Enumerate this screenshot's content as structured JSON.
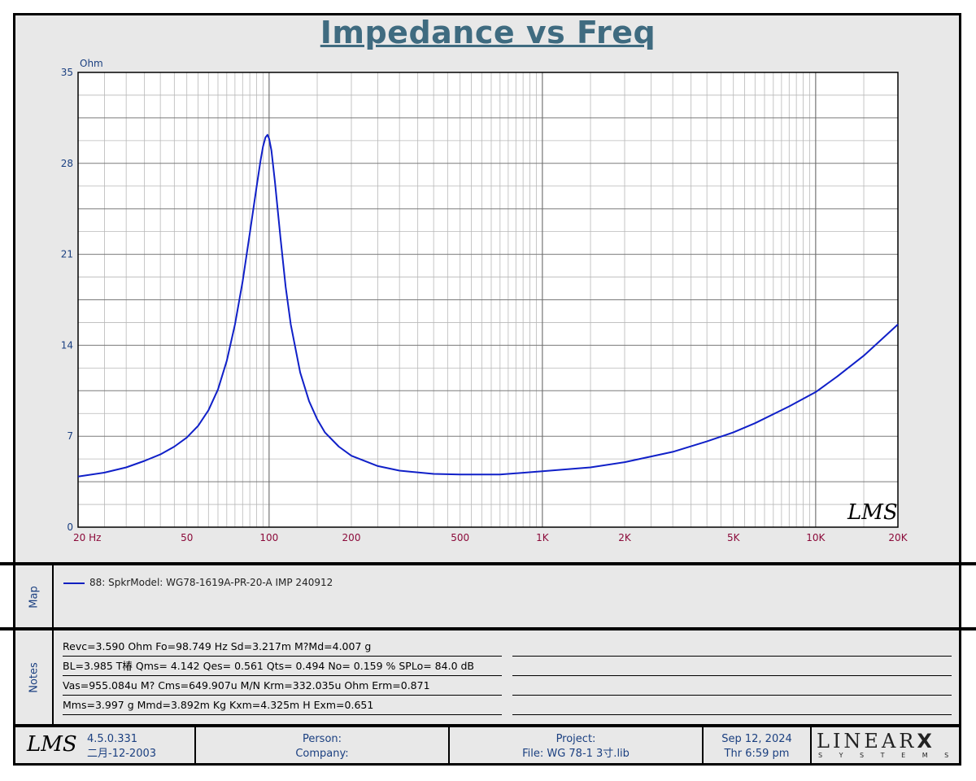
{
  "chart_data": {
    "type": "line",
    "title": "Impedance vs Freq",
    "ylabel": "Ohm",
    "xlabel": "",
    "xscale": "log",
    "xlim": [
      20,
      20000
    ],
    "ylim": [
      0,
      35
    ],
    "yticks": [
      0,
      7,
      14,
      21,
      28,
      35
    ],
    "ytick_labels": [
      "0",
      "7",
      "14",
      "21",
      "28",
      "35"
    ],
    "xticks": [
      20,
      50,
      100,
      200,
      500,
      1000,
      2000,
      5000,
      10000,
      20000
    ],
    "xtick_labels": [
      "20  Hz",
      "50",
      "100",
      "200",
      "500",
      "1K",
      "2K",
      "5K",
      "10K",
      "20K"
    ],
    "grid": true,
    "series": [
      {
        "name": "88: SpkrModel: WG78-1619A-PR-20-A IMP 240912",
        "color": "#1020c8",
        "x": [
          20,
          25,
          30,
          35,
          40,
          45,
          50,
          55,
          60,
          65,
          70,
          75,
          80,
          85,
          90,
          93,
          95,
          97,
          98.7,
          100,
          102,
          105,
          110,
          115,
          120,
          130,
          140,
          150,
          160,
          180,
          200,
          250,
          300,
          400,
          500,
          700,
          1000,
          1500,
          2000,
          3000,
          4000,
          5000,
          6000,
          8000,
          10000,
          12000,
          15000,
          20000
        ],
        "y": [
          3.9,
          4.2,
          4.6,
          5.1,
          5.6,
          6.2,
          6.9,
          7.8,
          9.0,
          10.6,
          12.8,
          15.6,
          18.9,
          22.6,
          26.2,
          28.2,
          29.3,
          30.0,
          30.2,
          29.9,
          29.0,
          26.6,
          22.3,
          18.5,
          15.6,
          11.9,
          9.7,
          8.3,
          7.3,
          6.2,
          5.5,
          4.7,
          4.35,
          4.1,
          4.05,
          4.05,
          4.3,
          4.6,
          5.0,
          5.8,
          6.6,
          7.3,
          8.0,
          9.3,
          10.4,
          11.6,
          13.2,
          15.6
        ]
      }
    ]
  },
  "legend": {
    "side_label": "Map",
    "entry": "88: SpkrModel: WG78-1619A-PR-20-A IMP 240912"
  },
  "notes": {
    "side_label": "Notes",
    "lines": [
      "Revc=3.590 Ohm  Fo=98.749 Hz  Sd=3.217m M?Md=4.007 g",
      "BL=3.985 T椿  Qms= 4.142  Qes= 0.561  Qts= 0.494  No= 0.159 %  SPLo= 84.0 dB",
      "Vas=955.084u M? Cms=649.907u M/N  Krm=332.035u Ohm  Erm=0.871",
      "Mms=3.997 g  Mmd=3.892m Kg  Kxm=4.325m H  Exm=0.651"
    ]
  },
  "footer": {
    "logo": "LMS",
    "version": "4.5.0.331",
    "version_date": "二月-12-2003",
    "person_label": "Person:",
    "company_label": "Company:",
    "project_label": "Project:",
    "file_label": "File: WG 78-1 3寸.lib",
    "date": "Sep 12, 2024",
    "time": "Thr  6:59 pm",
    "brand_top": "LINEAR",
    "brand_x": "X",
    "brand_bottom": "S Y S T E M S"
  },
  "watermark": "LMS",
  "colors": {
    "title": "#3f6b80",
    "curve": "#1020c8",
    "axis_labels": "#8b0a3a",
    "y_labels": "#1a3f80",
    "background": "#e8e8e8",
    "plot_background": "#ffffff"
  }
}
